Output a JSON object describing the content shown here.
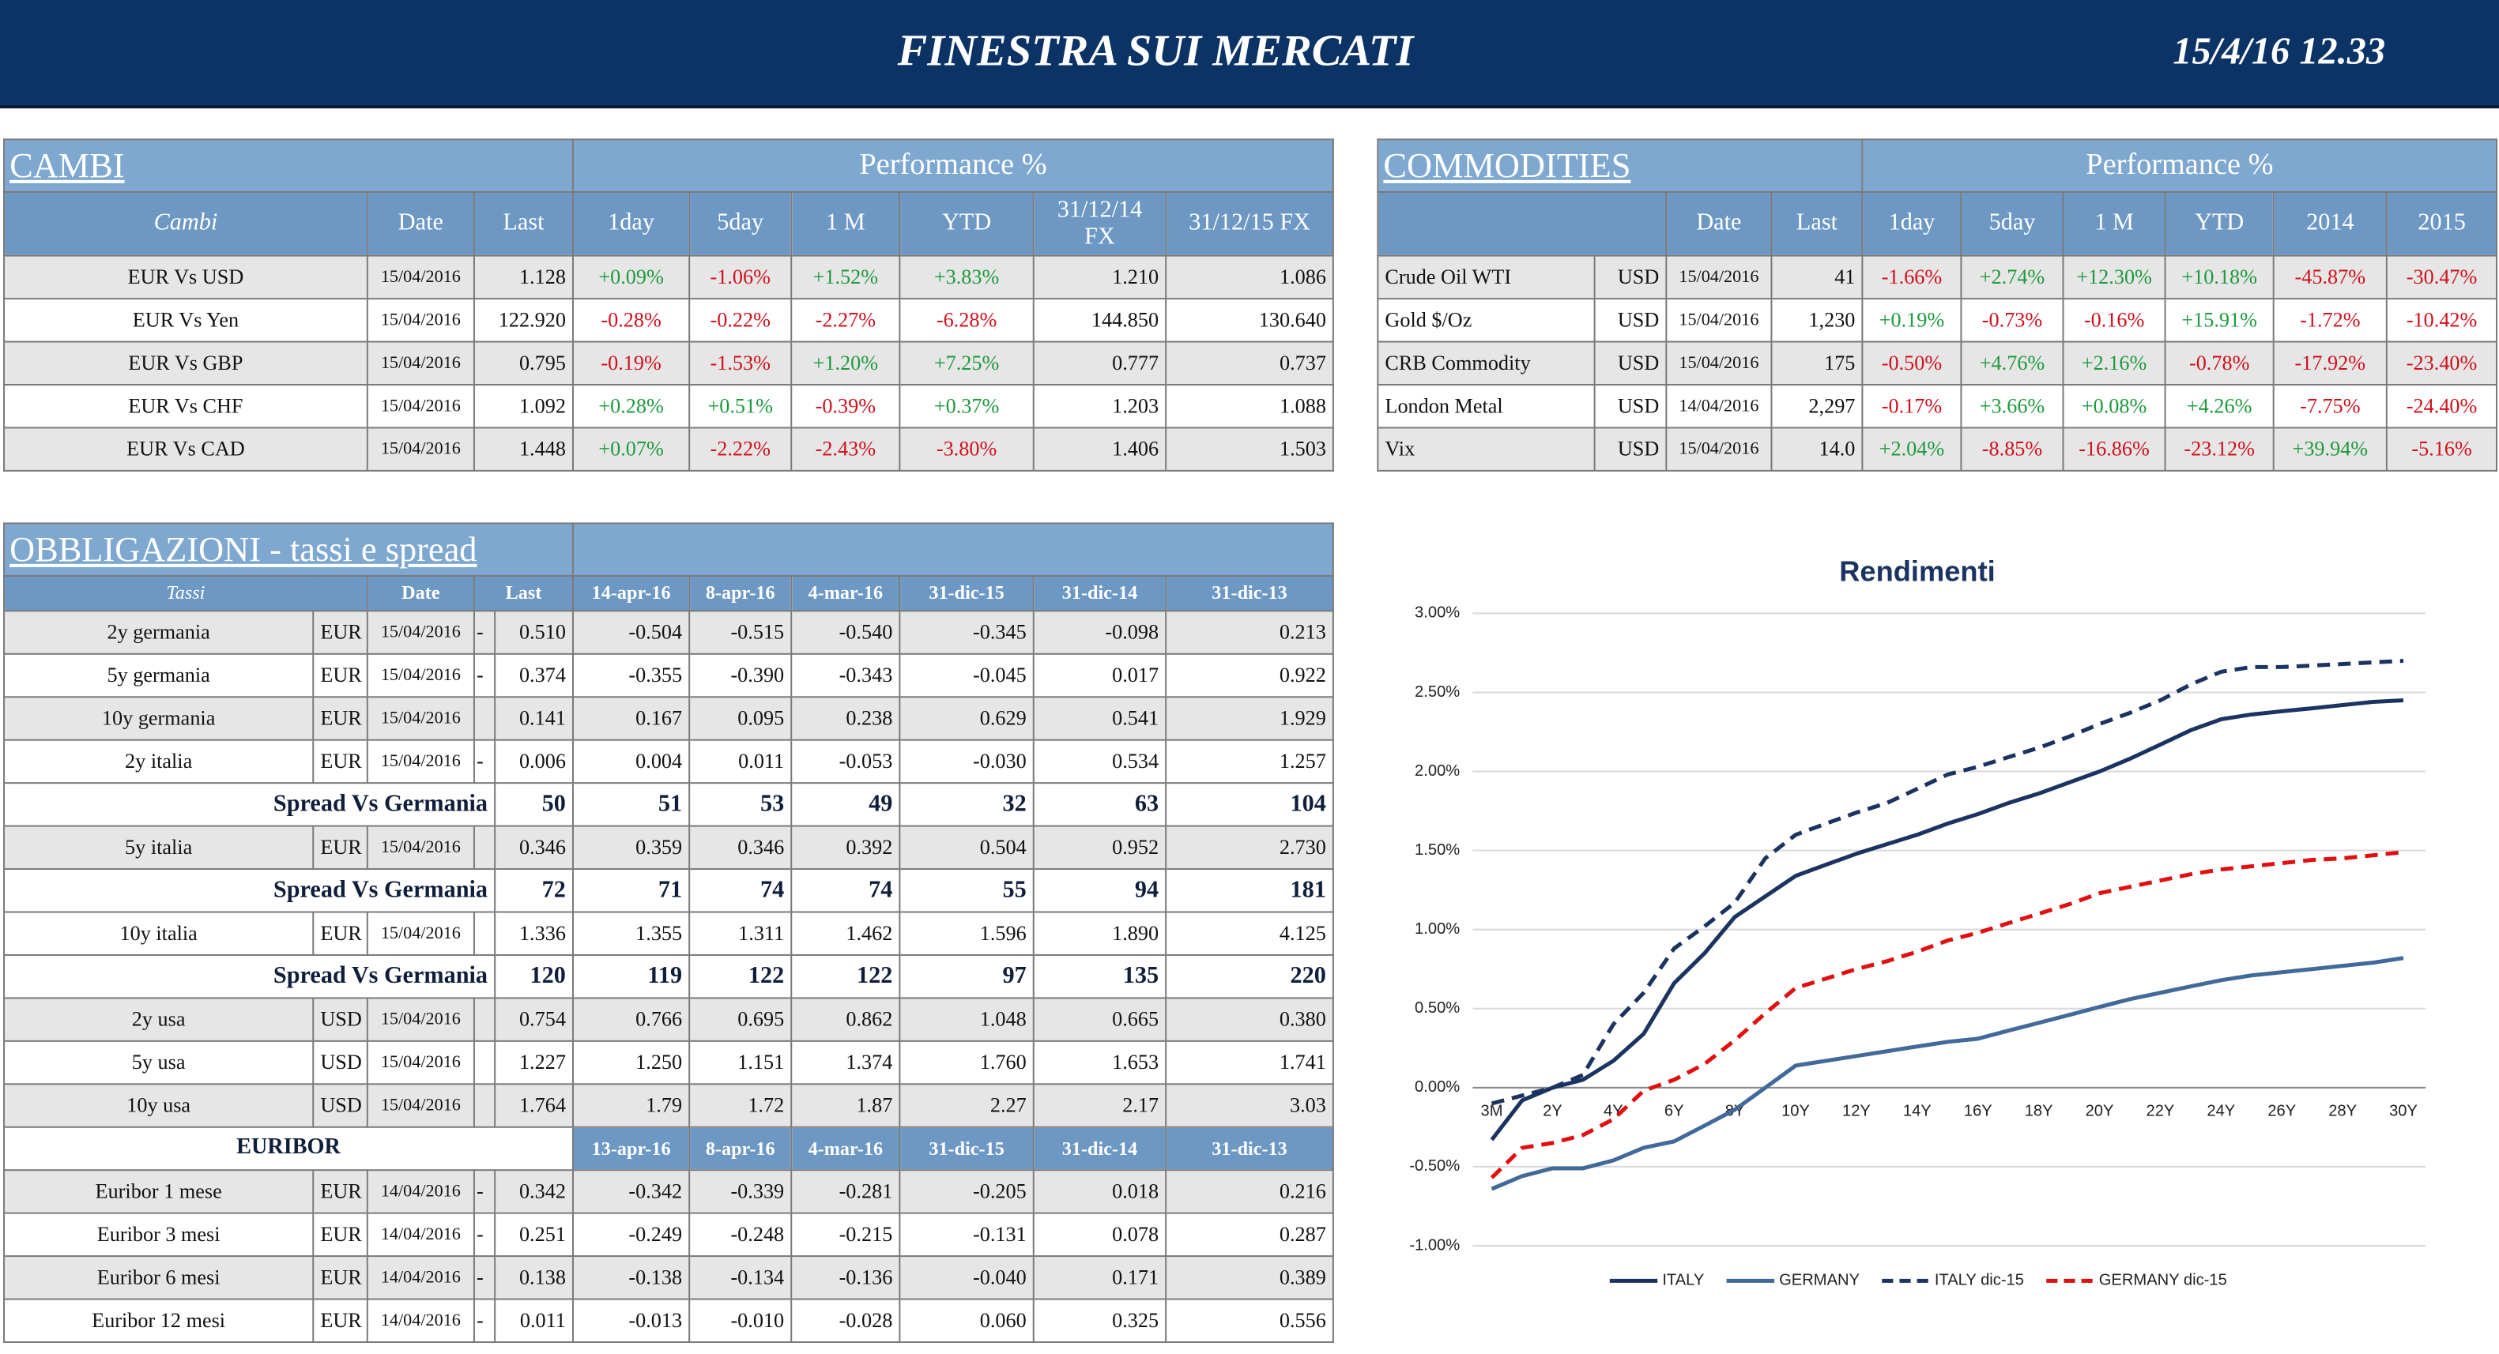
{
  "header": {
    "title": "FINESTRA SUI MERCATI",
    "timestamp": "15/4/16 12.33"
  },
  "cambi": {
    "title": "CAMBI",
    "group_header": "Performance  %",
    "columns": [
      "Cambi",
      "Date",
      "Last",
      "1day",
      "5day",
      "1 M",
      "YTD",
      "31/12/14 FX",
      "31/12/15  FX"
    ],
    "rows": [
      [
        "EUR Vs USD",
        "15/04/2016",
        "1.128",
        "+0.09%",
        "-1.06%",
        "+1.52%",
        "+3.83%",
        "1.210",
        "1.086"
      ],
      [
        "EUR Vs Yen",
        "15/04/2016",
        "122.920",
        "-0.28%",
        "-0.22%",
        "-2.27%",
        "-6.28%",
        "144.850",
        "130.640"
      ],
      [
        "EUR Vs GBP",
        "15/04/2016",
        "0.795",
        "-0.19%",
        "-1.53%",
        "+1.20%",
        "+7.25%",
        "0.777",
        "0.737"
      ],
      [
        "EUR Vs CHF",
        "15/04/2016",
        "1.092",
        "+0.28%",
        "+0.51%",
        "-0.39%",
        "+0.37%",
        "1.203",
        "1.088"
      ],
      [
        "EUR Vs CAD",
        "15/04/2016",
        "1.448",
        "+0.07%",
        "-2.22%",
        "-2.43%",
        "-3.80%",
        "1.406",
        "1.503"
      ]
    ]
  },
  "commodities": {
    "title": "COMMODITIES",
    "group_header": "Performance  %",
    "columns": [
      "Date",
      "Last",
      "1day",
      "5day",
      "1 M",
      "YTD",
      "2014",
      "2015"
    ],
    "rows": [
      [
        "Crude Oil WTI",
        "USD",
        "15/04/2016",
        "41",
        "-1.66%",
        "+2.74%",
        "+12.30%",
        "+10.18%",
        "-45.87%",
        "-30.47%"
      ],
      [
        "Gold $/Oz",
        "USD",
        "15/04/2016",
        "1,230",
        "+0.19%",
        "-0.73%",
        "-0.16%",
        "+15.91%",
        "-1.72%",
        "-10.42%"
      ],
      [
        "CRB Commodity",
        "USD",
        "15/04/2016",
        "175",
        "-0.50%",
        "+4.76%",
        "+2.16%",
        "-0.78%",
        "-17.92%",
        "-23.40%"
      ],
      [
        "London Metal",
        "USD",
        "14/04/2016",
        "2,297",
        "-0.17%",
        "+3.66%",
        "+0.08%",
        "+4.26%",
        "-7.75%",
        "-24.40%"
      ],
      [
        "Vix",
        "USD",
        "15/04/2016",
        "14.0",
        "+2.04%",
        "-8.85%",
        "-16.86%",
        "-23.12%",
        "+39.94%",
        "-5.16%"
      ]
    ]
  },
  "obbligazioni": {
    "title": "OBBLIGAZIONI - tassi e spread",
    "columns": [
      "Tassi",
      "Date",
      "Last",
      "14-apr-16",
      "8-apr-16",
      "4-mar-16",
      "31-dic-15",
      "31-dic-14",
      "31-dic-13"
    ],
    "rows": [
      {
        "name": "2y germania",
        "currency": "EUR",
        "date": "15/04/2016",
        "trend": "-",
        "last": "0.510",
        "values": [
          "-0.504",
          "-0.515",
          "-0.540",
          "-0.345",
          "-0.098",
          "0.213"
        ]
      },
      {
        "name": "5y germania",
        "currency": "EUR",
        "date": "15/04/2016",
        "trend": "-",
        "last": "0.374",
        "values": [
          "-0.355",
          "-0.390",
          "-0.343",
          "-0.045",
          "0.017",
          "0.922"
        ]
      },
      {
        "name": "10y germania",
        "currency": "EUR",
        "date": "15/04/2016",
        "last": "0.141",
        "values": [
          "0.167",
          "0.095",
          "0.238",
          "0.629",
          "0.541",
          "1.929"
        ]
      },
      {
        "name": "2y italia",
        "currency": "EUR",
        "date": "15/04/2016",
        "trend": "-",
        "last": "0.006",
        "values": [
          "0.004",
          "0.011",
          "-0.053",
          "-0.030",
          "0.534",
          "1.257"
        ]
      },
      {
        "name": "Spread Vs Germania",
        "last": "50",
        "values": [
          "51",
          "53",
          "49",
          "32",
          "63",
          "104"
        ]
      },
      {
        "name": "5y italia",
        "currency": "EUR",
        "date": "15/04/2016",
        "last": "0.346",
        "values": [
          "0.359",
          "0.346",
          "0.392",
          "0.504",
          "0.952",
          "2.730"
        ]
      },
      {
        "name": "Spread Vs Germania",
        "last": "72",
        "values": [
          "71",
          "74",
          "74",
          "55",
          "94",
          "181"
        ]
      },
      {
        "name": "10y italia",
        "currency": "EUR",
        "date": "15/04/2016",
        "last": "1.336",
        "values": [
          "1.355",
          "1.311",
          "1.462",
          "1.596",
          "1.890",
          "4.125"
        ]
      },
      {
        "name": "Spread Vs Germania",
        "last": "120",
        "values": [
          "119",
          "122",
          "122",
          "97",
          "135",
          "220"
        ]
      },
      {
        "name": "2y usa",
        "currency": "USD",
        "date": "15/04/2016",
        "last": "0.754",
        "values": [
          "0.766",
          "0.695",
          "0.862",
          "1.048",
          "0.665",
          "0.380"
        ]
      },
      {
        "name": "5y usa",
        "currency": "USD",
        "date": "15/04/2016",
        "last": "1.227",
        "values": [
          "1.250",
          "1.151",
          "1.374",
          "1.760",
          "1.653",
          "1.741"
        ]
      },
      {
        "name": "10y usa",
        "currency": "USD",
        "date": "15/04/2016",
        "last": "1.764",
        "values": [
          "1.79",
          "1.72",
          "1.87",
          "2.27",
          "2.17",
          "3.03"
        ]
      }
    ]
  },
  "euribor": {
    "title": "EURIBOR",
    "columns": [
      "13-apr-16",
      "8-apr-16",
      "4-mar-16",
      "31-dic-15",
      "31-dic-14",
      "31-dic-13"
    ],
    "rows": [
      {
        "name": "Euribor 1 mese",
        "currency": "EUR",
        "date": "14/04/2016",
        "trend": "-",
        "last": "0.342",
        "values": [
          "-0.342",
          "-0.339",
          "-0.281",
          "-0.205",
          "0.018",
          "0.216"
        ]
      },
      {
        "name": "Euribor 3 mesi",
        "currency": "EUR",
        "date": "14/04/2016",
        "trend": "-",
        "last": "0.251",
        "values": [
          "-0.249",
          "-0.248",
          "-0.215",
          "-0.131",
          "0.078",
          "0.287"
        ]
      },
      {
        "name": "Euribor 6 mesi",
        "currency": "EUR",
        "date": "14/04/2016",
        "trend": "-",
        "last": "0.138",
        "values": [
          "-0.138",
          "-0.134",
          "-0.136",
          "-0.040",
          "0.171",
          "0.389"
        ]
      },
      {
        "name": "Euribor 12 mesi",
        "currency": "EUR",
        "date": "14/04/2016",
        "trend": "-",
        "last": "0.011",
        "values": [
          "-0.013",
          "-0.010",
          "-0.028",
          "0.060",
          "0.325",
          "0.556"
        ]
      }
    ]
  },
  "chart_data": {
    "type": "line",
    "title": "Rendimenti",
    "categories": [
      "3M",
      null,
      "2Y",
      null,
      "4Y",
      null,
      "6Y",
      null,
      "8Y",
      null,
      "10Y",
      null,
      "12Y",
      null,
      "14Y",
      null,
      "16Y",
      null,
      "18Y",
      null,
      "20Y",
      null,
      "22Y",
      null,
      "24Y",
      null,
      "26Y",
      null,
      "28Y",
      null,
      "30Y"
    ],
    "series": [
      {
        "name": "ITALY",
        "color": "#1b3360",
        "dash": false,
        "values": [
          -0.33,
          -0.08,
          0.0,
          0.05,
          0.17,
          0.34,
          0.66,
          0.85,
          1.08,
          1.21,
          1.34,
          1.41,
          1.48,
          1.54,
          1.6,
          1.67,
          1.73,
          1.8,
          1.86,
          1.93,
          2.0,
          2.08,
          2.17,
          2.26,
          2.33,
          2.36,
          2.38,
          2.4,
          2.42,
          2.44,
          2.45
        ]
      },
      {
        "name": "GERMANY",
        "color": "#41699a",
        "dash": false,
        "values": [
          -0.64,
          -0.56,
          -0.51,
          -0.51,
          -0.46,
          -0.38,
          -0.34,
          -0.24,
          -0.14,
          0.0,
          0.14,
          0.17,
          0.2,
          0.23,
          0.26,
          0.29,
          0.31,
          0.36,
          0.41,
          0.46,
          0.51,
          0.56,
          0.6,
          0.64,
          0.68,
          0.71,
          0.73,
          0.75,
          0.77,
          0.79,
          0.82
        ]
      },
      {
        "name": "ITALY dic-15",
        "color": "#1b3360",
        "dash": true,
        "values": [
          -0.1,
          -0.05,
          0.0,
          0.08,
          0.4,
          0.6,
          0.88,
          1.02,
          1.17,
          1.45,
          1.6,
          1.67,
          1.74,
          1.8,
          1.89,
          1.98,
          2.03,
          2.09,
          2.15,
          2.22,
          2.3,
          2.37,
          2.45,
          2.55,
          2.63,
          2.66,
          2.66,
          2.67,
          2.68,
          2.69,
          2.7
        ]
      },
      {
        "name": "GERMANY dic-15",
        "color": "#e01010",
        "dash": true,
        "values": [
          -0.57,
          -0.38,
          -0.35,
          -0.3,
          -0.2,
          -0.02,
          0.05,
          0.15,
          0.3,
          0.47,
          0.63,
          0.69,
          0.75,
          0.8,
          0.86,
          0.93,
          0.98,
          1.04,
          1.1,
          1.16,
          1.23,
          1.27,
          1.31,
          1.35,
          1.38,
          1.4,
          1.42,
          1.44,
          1.45,
          1.47,
          1.49
        ]
      }
    ],
    "ylim": [
      -1,
      3
    ],
    "yticks": [
      {
        "value": -1,
        "label": "-1.00%"
      },
      {
        "value": -0.5,
        "label": "-0.50%"
      },
      {
        "value": 0,
        "label": "0.00%"
      },
      {
        "value": 0.5,
        "label": "0.50%"
      },
      {
        "value": 1,
        "label": "1.00%"
      },
      {
        "value": 1.5,
        "label": "1.50%"
      },
      {
        "value": 2,
        "label": "2.00%"
      },
      {
        "value": 2.5,
        "label": "2.50%"
      },
      {
        "value": 3,
        "label": "3.00%"
      }
    ],
    "grid": true,
    "legend": "bottom"
  }
}
